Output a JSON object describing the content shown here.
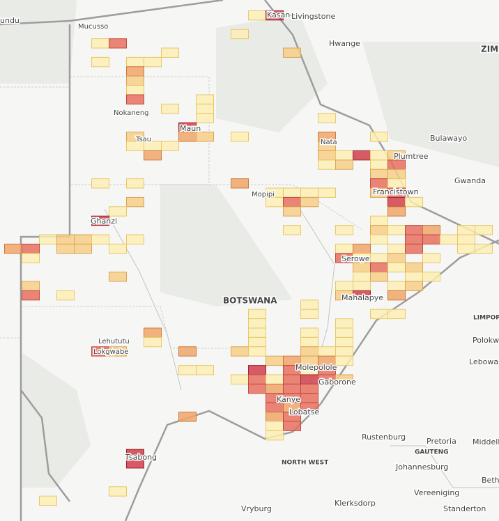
{
  "map": {
    "labels": [
      "undu",
      "Kasane",
      "Livingstone",
      "Mucusso",
      "Hwange",
      "ZIM",
      "Nokaneng",
      "Maun",
      "Tsau",
      "Nata",
      "Bulawayo",
      "Plumtree",
      "Gwanda",
      "Francistown",
      "Mopipi",
      "Ghanzi",
      "Serowe",
      "BOTSWANA",
      "Mahalapye",
      "LIMPOPO",
      "Polokw",
      "Lehututu",
      "Lokgwabe",
      "Lebowa",
      "Molepolole",
      "Gaborone",
      "Kanye",
      "Lobatse",
      "Rustenburg",
      "Pretoria",
      "Middelb",
      "GAUTENG",
      "Tsabong",
      "NORTH WEST",
      "Johannesburg",
      "Betha",
      "Vereeniging",
      "Klerksdorp",
      "Vryburg",
      "Standerton"
    ]
  }
}
